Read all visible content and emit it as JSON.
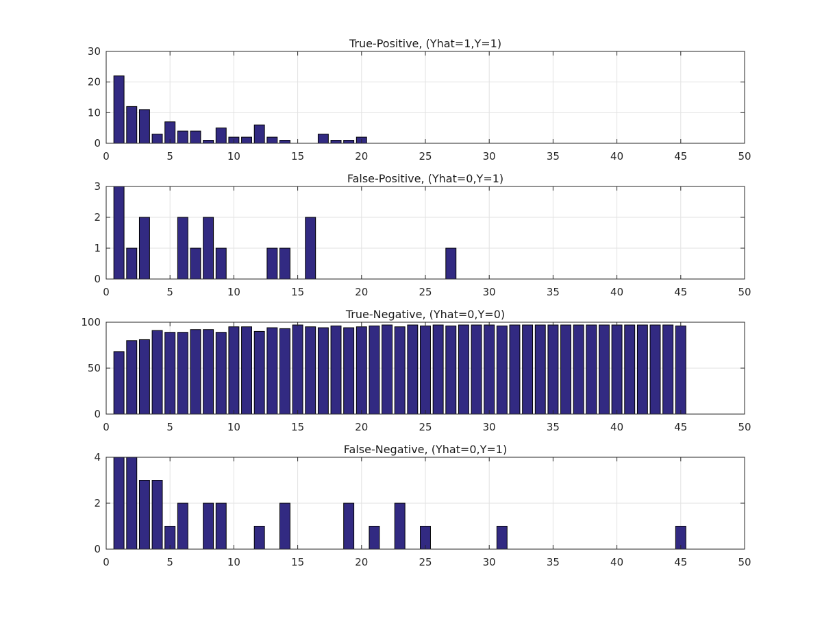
{
  "figure_colors": {
    "background": "#ffffff",
    "bar_fill": "#322a82",
    "bar_edge": "#000000",
    "grid": "#e2e2e2",
    "axis": "#262626"
  },
  "chart_data": [
    {
      "type": "bar",
      "title": "True-Positive, (Yhat=1,Y=1)",
      "xlabel": "",
      "ylabel": "",
      "xlim": [
        0,
        50
      ],
      "ylim": [
        0,
        30
      ],
      "xticks": [
        0,
        5,
        10,
        15,
        20,
        25,
        30,
        35,
        40,
        45,
        50
      ],
      "yticks": [
        0,
        10,
        20,
        30
      ],
      "grid": true,
      "x": [
        1,
        2,
        3,
        4,
        5,
        6,
        7,
        8,
        9,
        10,
        11,
        12,
        13,
        14,
        15,
        16,
        17,
        18,
        19,
        20
      ],
      "values": [
        22,
        12,
        11,
        3,
        7,
        4,
        4,
        1,
        5,
        2,
        2,
        6,
        2,
        1,
        0,
        0,
        3,
        1,
        1,
        2
      ]
    },
    {
      "type": "bar",
      "title": "False-Positive, (Yhat=0,Y=1)",
      "xlabel": "",
      "ylabel": "",
      "xlim": [
        0,
        50
      ],
      "ylim": [
        0,
        3
      ],
      "xticks": [
        0,
        5,
        10,
        15,
        20,
        25,
        30,
        35,
        40,
        45,
        50
      ],
      "yticks": [
        0,
        1,
        2,
        3
      ],
      "grid": true,
      "x": [
        1,
        2,
        3,
        4,
        5,
        6,
        7,
        8,
        9,
        10,
        11,
        12,
        13,
        14,
        15,
        16,
        17,
        18,
        19,
        20,
        21,
        22,
        23,
        24,
        25,
        26,
        27
      ],
      "values": [
        3,
        1,
        2,
        0,
        0,
        2,
        1,
        2,
        1,
        0,
        0,
        0,
        1,
        1,
        0,
        2,
        0,
        0,
        0,
        0,
        0,
        0,
        0,
        0,
        0,
        0,
        1
      ]
    },
    {
      "type": "bar",
      "title": "True-Negative, (Yhat=0,Y=0)",
      "xlabel": "",
      "ylabel": "",
      "xlim": [
        0,
        50
      ],
      "ylim": [
        0,
        100
      ],
      "xticks": [
        0,
        5,
        10,
        15,
        20,
        25,
        30,
        35,
        40,
        45,
        50
      ],
      "yticks": [
        0,
        50,
        100
      ],
      "grid": true,
      "x": [
        1,
        2,
        3,
        4,
        5,
        6,
        7,
        8,
        9,
        10,
        11,
        12,
        13,
        14,
        15,
        16,
        17,
        18,
        19,
        20,
        21,
        22,
        23,
        24,
        25,
        26,
        27,
        28,
        29,
        30,
        31,
        32,
        33,
        34,
        35,
        36,
        37,
        38,
        39,
        40,
        41,
        42,
        43,
        44,
        45
      ],
      "values": [
        68,
        80,
        81,
        91,
        89,
        89,
        92,
        92,
        89,
        95,
        95,
        90,
        94,
        93,
        97,
        95,
        94,
        96,
        94,
        95,
        96,
        97,
        95,
        97,
        96,
        97,
        96,
        97,
        97,
        97,
        96,
        97,
        97,
        97,
        97,
        97,
        97,
        97,
        97,
        97,
        97,
        97,
        97,
        97,
        96
      ]
    },
    {
      "type": "bar",
      "title": "False-Negative, (Yhat=0,Y=1)",
      "xlabel": "",
      "ylabel": "",
      "xlim": [
        0,
        50
      ],
      "ylim": [
        0,
        4
      ],
      "xticks": [
        0,
        5,
        10,
        15,
        20,
        25,
        30,
        35,
        40,
        45,
        50
      ],
      "yticks": [
        0,
        2,
        4
      ],
      "grid": true,
      "x": [
        1,
        2,
        3,
        4,
        5,
        6,
        7,
        8,
        9,
        10,
        11,
        12,
        13,
        14,
        15,
        16,
        17,
        18,
        19,
        20,
        21,
        22,
        23,
        24,
        25,
        26,
        27,
        28,
        29,
        30,
        31,
        32,
        33,
        34,
        35,
        36,
        37,
        38,
        39,
        40,
        41,
        42,
        43,
        44,
        45
      ],
      "values": [
        4,
        4,
        3,
        3,
        1,
        2,
        0,
        2,
        2,
        0,
        0,
        1,
        0,
        2,
        0,
        0,
        0,
        0,
        2,
        0,
        1,
        0,
        2,
        0,
        1,
        0,
        0,
        0,
        0,
        0,
        1,
        0,
        0,
        0,
        0,
        0,
        0,
        0,
        0,
        0,
        0,
        0,
        0,
        0,
        1
      ]
    }
  ]
}
